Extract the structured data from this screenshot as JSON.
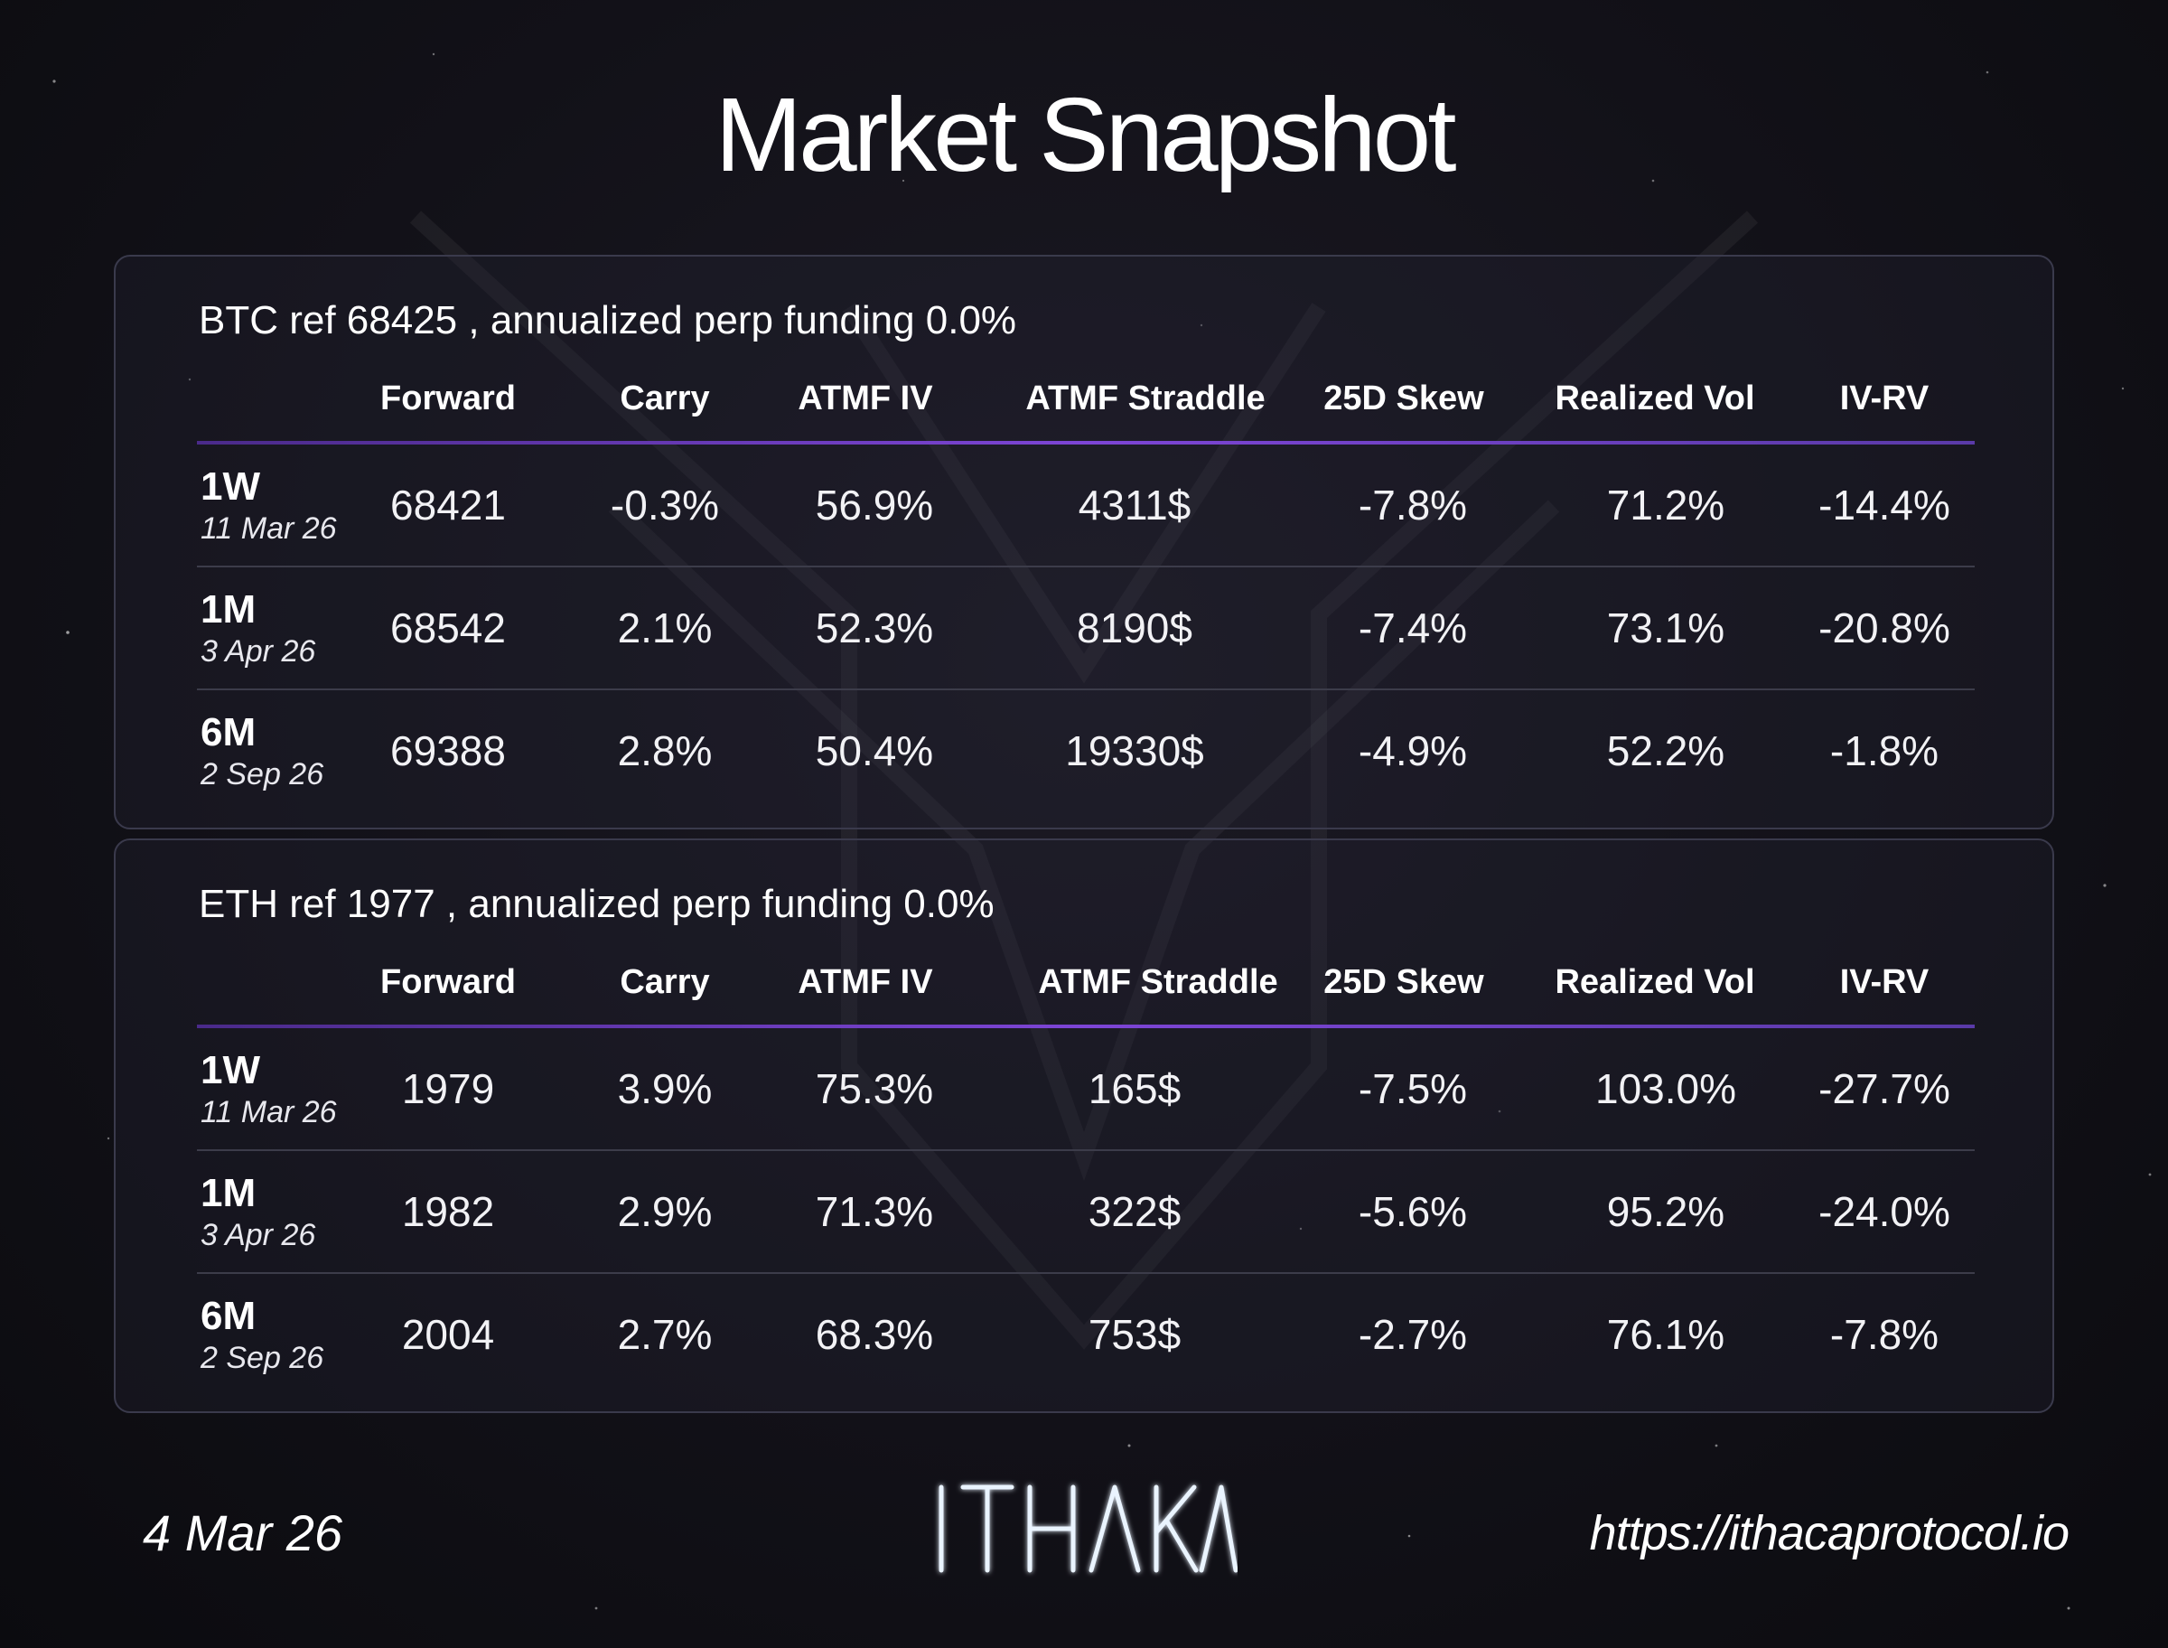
{
  "title": "Market Snapshot",
  "columns": [
    "Forward",
    "Carry",
    "ATMF IV",
    "ATMF Straddle",
    "25D Skew",
    "Realized Vol",
    "IV-RV"
  ],
  "panels": [
    {
      "header": "BTC ref 68425 , annualized perp funding 0.0%",
      "rows": [
        {
          "tenor": "1W",
          "date": "11 Mar 26",
          "cells": [
            "68421",
            "-0.3%",
            "56.9%",
            "4311$",
            "-7.8%",
            "71.2%",
            "-14.4%"
          ]
        },
        {
          "tenor": "1M",
          "date": "3 Apr 26",
          "cells": [
            "68542",
            "2.1%",
            "52.3%",
            "8190$",
            "-7.4%",
            "73.1%",
            "-20.8%"
          ]
        },
        {
          "tenor": "6M",
          "date": "2 Sep 26",
          "cells": [
            "69388",
            "2.8%",
            "50.4%",
            "19330$",
            "-4.9%",
            "52.2%",
            "-1.8%"
          ]
        }
      ]
    },
    {
      "header": "ETH ref 1977 , annualized perp funding 0.0%",
      "rows": [
        {
          "tenor": "1W",
          "date": "11 Mar 26",
          "cells": [
            "1979",
            "3.9%",
            "75.3%",
            "165$",
            "-7.5%",
            "103.0%",
            "-27.7%"
          ]
        },
        {
          "tenor": "1M",
          "date": "3 Apr 26",
          "cells": [
            "1982",
            "2.9%",
            "71.3%",
            "322$",
            "-5.6%",
            "95.2%",
            "-24.0%"
          ]
        },
        {
          "tenor": "6M",
          "date": "2 Sep 26",
          "cells": [
            "2004",
            "2.7%",
            "68.3%",
            "753$",
            "-2.7%",
            "76.1%",
            "-7.8%"
          ]
        }
      ]
    }
  ],
  "footer": {
    "date": "4 Mar 26",
    "logo_text": "ITHAKA",
    "url": "https://ithacaprotocol.io"
  },
  "colors": {
    "background": "#121118",
    "accent_rule": "#7d45d6",
    "logo_glow": "#cfe6ff"
  }
}
